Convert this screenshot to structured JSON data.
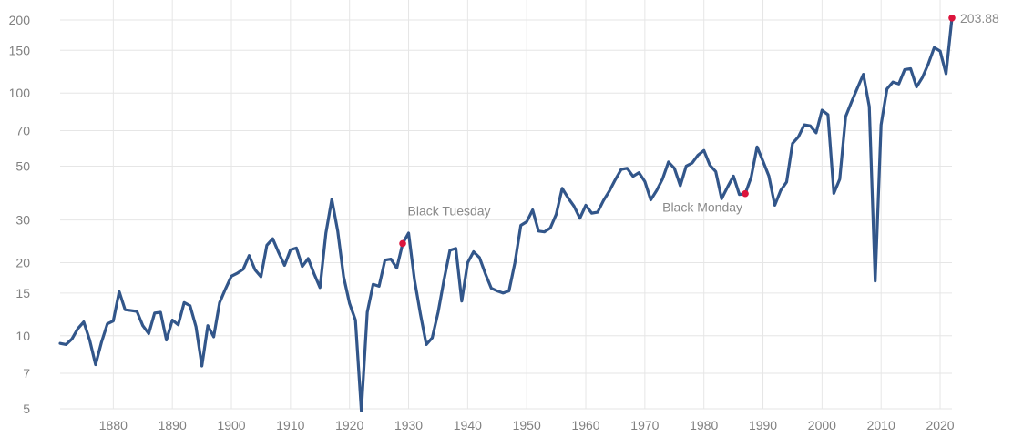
{
  "chart_data": {
    "type": "line",
    "title": "",
    "xlabel": "",
    "ylabel": "",
    "y_scale": "log",
    "ylim": [
      5,
      210
    ],
    "xlim": [
      1871,
      2022
    ],
    "grid": true,
    "line_color": "#32568a",
    "highlight_color": "#dc143c",
    "x_ticks": [
      1880,
      1890,
      1900,
      1910,
      1920,
      1930,
      1940,
      1950,
      1960,
      1970,
      1980,
      1990,
      2000,
      2010,
      2020
    ],
    "y_ticks": [
      5,
      7,
      10,
      15,
      20,
      30,
      50,
      70,
      100,
      150,
      200
    ],
    "series": [
      {
        "x": [
          1871,
          1872,
          1873,
          1874,
          1875,
          1876,
          1877,
          1878,
          1879,
          1880,
          1881,
          1882,
          1883,
          1884,
          1885,
          1886,
          1887,
          1888,
          1889,
          1890,
          1891,
          1892,
          1893,
          1894,
          1895,
          1896,
          1897,
          1898,
          1899,
          1900,
          1901,
          1902,
          1903,
          1904,
          1905,
          1906,
          1907,
          1908,
          1909,
          1910,
          1911,
          1912,
          1913,
          1914,
          1915,
          1916,
          1917,
          1918,
          1919,
          1920,
          1921,
          1922,
          1923,
          1924,
          1925,
          1926,
          1927,
          1928,
          1929,
          1930,
          1931,
          1932,
          1933,
          1934,
          1935,
          1936,
          1937,
          1938,
          1939,
          1940,
          1941,
          1942,
          1943,
          1944,
          1945,
          1946,
          1947,
          1948,
          1949,
          1950,
          1951,
          1952,
          1953,
          1954,
          1955,
          1956,
          1957,
          1958,
          1959,
          1960,
          1961,
          1962,
          1963,
          1964,
          1965,
          1966,
          1967,
          1968,
          1969,
          1970,
          1971,
          1972,
          1973,
          1974,
          1975,
          1976,
          1977,
          1978,
          1979,
          1980,
          1981,
          1982,
          1983,
          1984,
          1985,
          1986,
          1987,
          1988,
          1989,
          1990,
          1991,
          1992,
          1993,
          1994,
          1995,
          1996,
          1997,
          1998,
          1999,
          2000,
          2001,
          2002,
          2003,
          2004,
          2005,
          2006,
          2007,
          2008,
          2009,
          2010,
          2011,
          2012,
          2013,
          2014,
          2015,
          2016,
          2017,
          2018,
          2019,
          2020,
          2021,
          2022
        ],
        "y": [
          9.3,
          9.2,
          9.7,
          10.7,
          11.4,
          9.6,
          7.6,
          9.4,
          11.2,
          11.5,
          15.2,
          12.8,
          12.7,
          12.6,
          11.0,
          10.2,
          12.4,
          12.5,
          9.6,
          11.6,
          11.1,
          13.7,
          13.3,
          10.9,
          7.5,
          11.0,
          9.9,
          13.7,
          15.6,
          17.6,
          18.1,
          18.8,
          21.4,
          18.7,
          17.5,
          23.6,
          25.1,
          22.0,
          19.5,
          22.6,
          23.0,
          19.3,
          20.8,
          18.0,
          15.8,
          26.5,
          36.5,
          27.0,
          17.5,
          13.6,
          11.6,
          4.9,
          12.5,
          16.3,
          16.0,
          20.5,
          20.7,
          19.0,
          24.0,
          26.5,
          17.0,
          12.3,
          9.2,
          9.8,
          12.5,
          17.0,
          22.5,
          22.9,
          13.9,
          20.0,
          22.2,
          21.0,
          18.0,
          15.7,
          15.3,
          15.0,
          15.3,
          20.0,
          28.5,
          29.5,
          33.0,
          27.0,
          26.8,
          27.8,
          31.7,
          40.5,
          37.0,
          34.2,
          30.5,
          34.5,
          32.0,
          32.3,
          36.1,
          39.5,
          44.0,
          48.5,
          49.0,
          45.4,
          47.0,
          43.2,
          36.3,
          39.7,
          44.3,
          52.0,
          49.0,
          41.5,
          50.0,
          51.5,
          55.5,
          58.0,
          50.5,
          47.5,
          36.7,
          41.0,
          45.5,
          38.2,
          38.5,
          45.0,
          60.0,
          52.4,
          45.5,
          34.5,
          39.7,
          43.0,
          62.0,
          66.0,
          74.0,
          73.3,
          68.6,
          85.0,
          81.5,
          38.6,
          44.2,
          80.0,
          92.0,
          105.0,
          119.5,
          88.0,
          16.8,
          74.0,
          104.0,
          111.0,
          109.0,
          125.0,
          126.0,
          106.0,
          116.0,
          132.0,
          154.0,
          149.0,
          120.0,
          203.88
        ]
      }
    ],
    "annotations": [
      {
        "label": "Black Tuesday",
        "x": 1929,
        "y": 24.0
      },
      {
        "label": "Black Monday",
        "x": 1987,
        "y": 38.5
      },
      {
        "label": "203.88",
        "x": 2022,
        "y": 203.88
      }
    ]
  }
}
